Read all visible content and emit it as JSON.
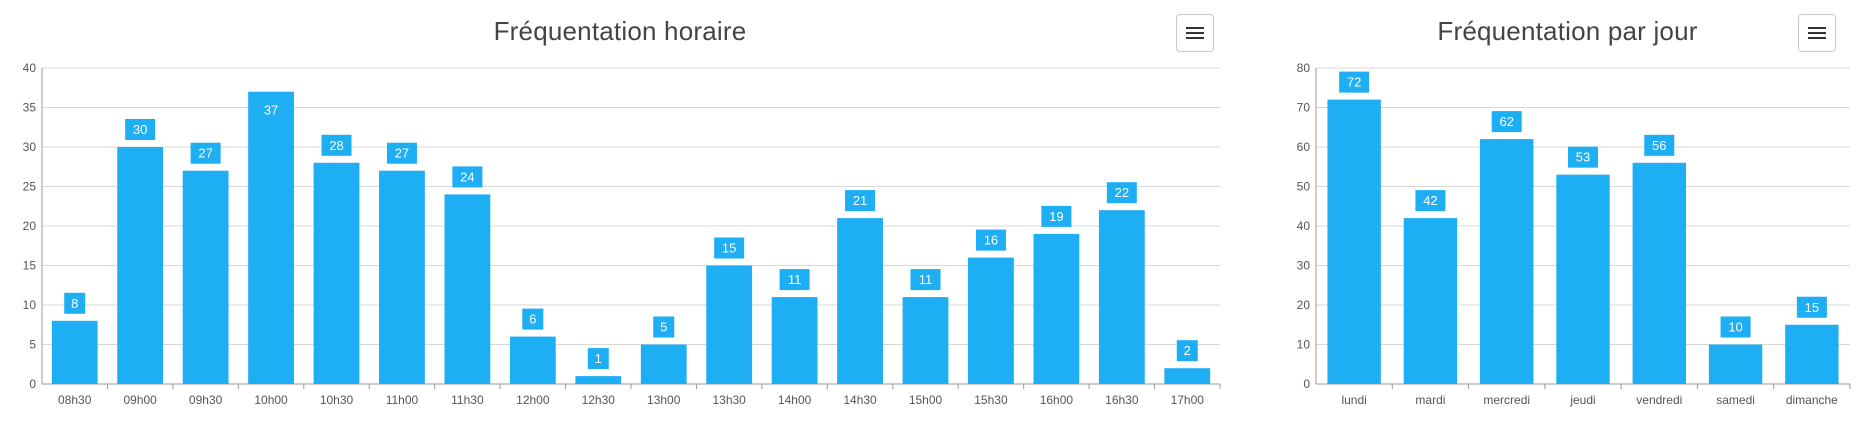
{
  "chart_data": [
    {
      "id": "hourly",
      "type": "bar",
      "title": "Fréquentation horaire",
      "xlabel": "",
      "ylabel": "",
      "categories": [
        "08h30",
        "09h00",
        "09h30",
        "10h00",
        "10h30",
        "11h00",
        "11h30",
        "12h00",
        "12h30",
        "13h00",
        "13h30",
        "14h00",
        "14h30",
        "15h00",
        "15h30",
        "16h00",
        "16h30",
        "17h00"
      ],
      "values": [
        8,
        30,
        27,
        37,
        28,
        27,
        24,
        6,
        1,
        5,
        15,
        11,
        21,
        11,
        16,
        19,
        22,
        2
      ],
      "ylim": [
        0,
        40
      ],
      "yticks": [
        0,
        5,
        10,
        15,
        20,
        25,
        30,
        35,
        40
      ],
      "grid": true,
      "legend": "none",
      "bar_color": "#1eaef3",
      "data_labels": "boxed"
    },
    {
      "id": "daily",
      "type": "bar",
      "title": "Fréquentation par jour",
      "xlabel": "",
      "ylabel": "",
      "categories": [
        "lundi",
        "mardi",
        "mercredi",
        "jeudi",
        "vendredi",
        "samedi",
        "dimanche"
      ],
      "values": [
        72,
        42,
        62,
        53,
        56,
        10,
        15
      ],
      "ylim": [
        0,
        80
      ],
      "yticks": [
        0,
        10,
        20,
        30,
        40,
        50,
        60,
        70,
        80
      ],
      "grid": true,
      "legend": "none",
      "bar_color": "#1eaef3",
      "data_labels": "boxed"
    }
  ],
  "menu_icon": "hamburger-icon"
}
